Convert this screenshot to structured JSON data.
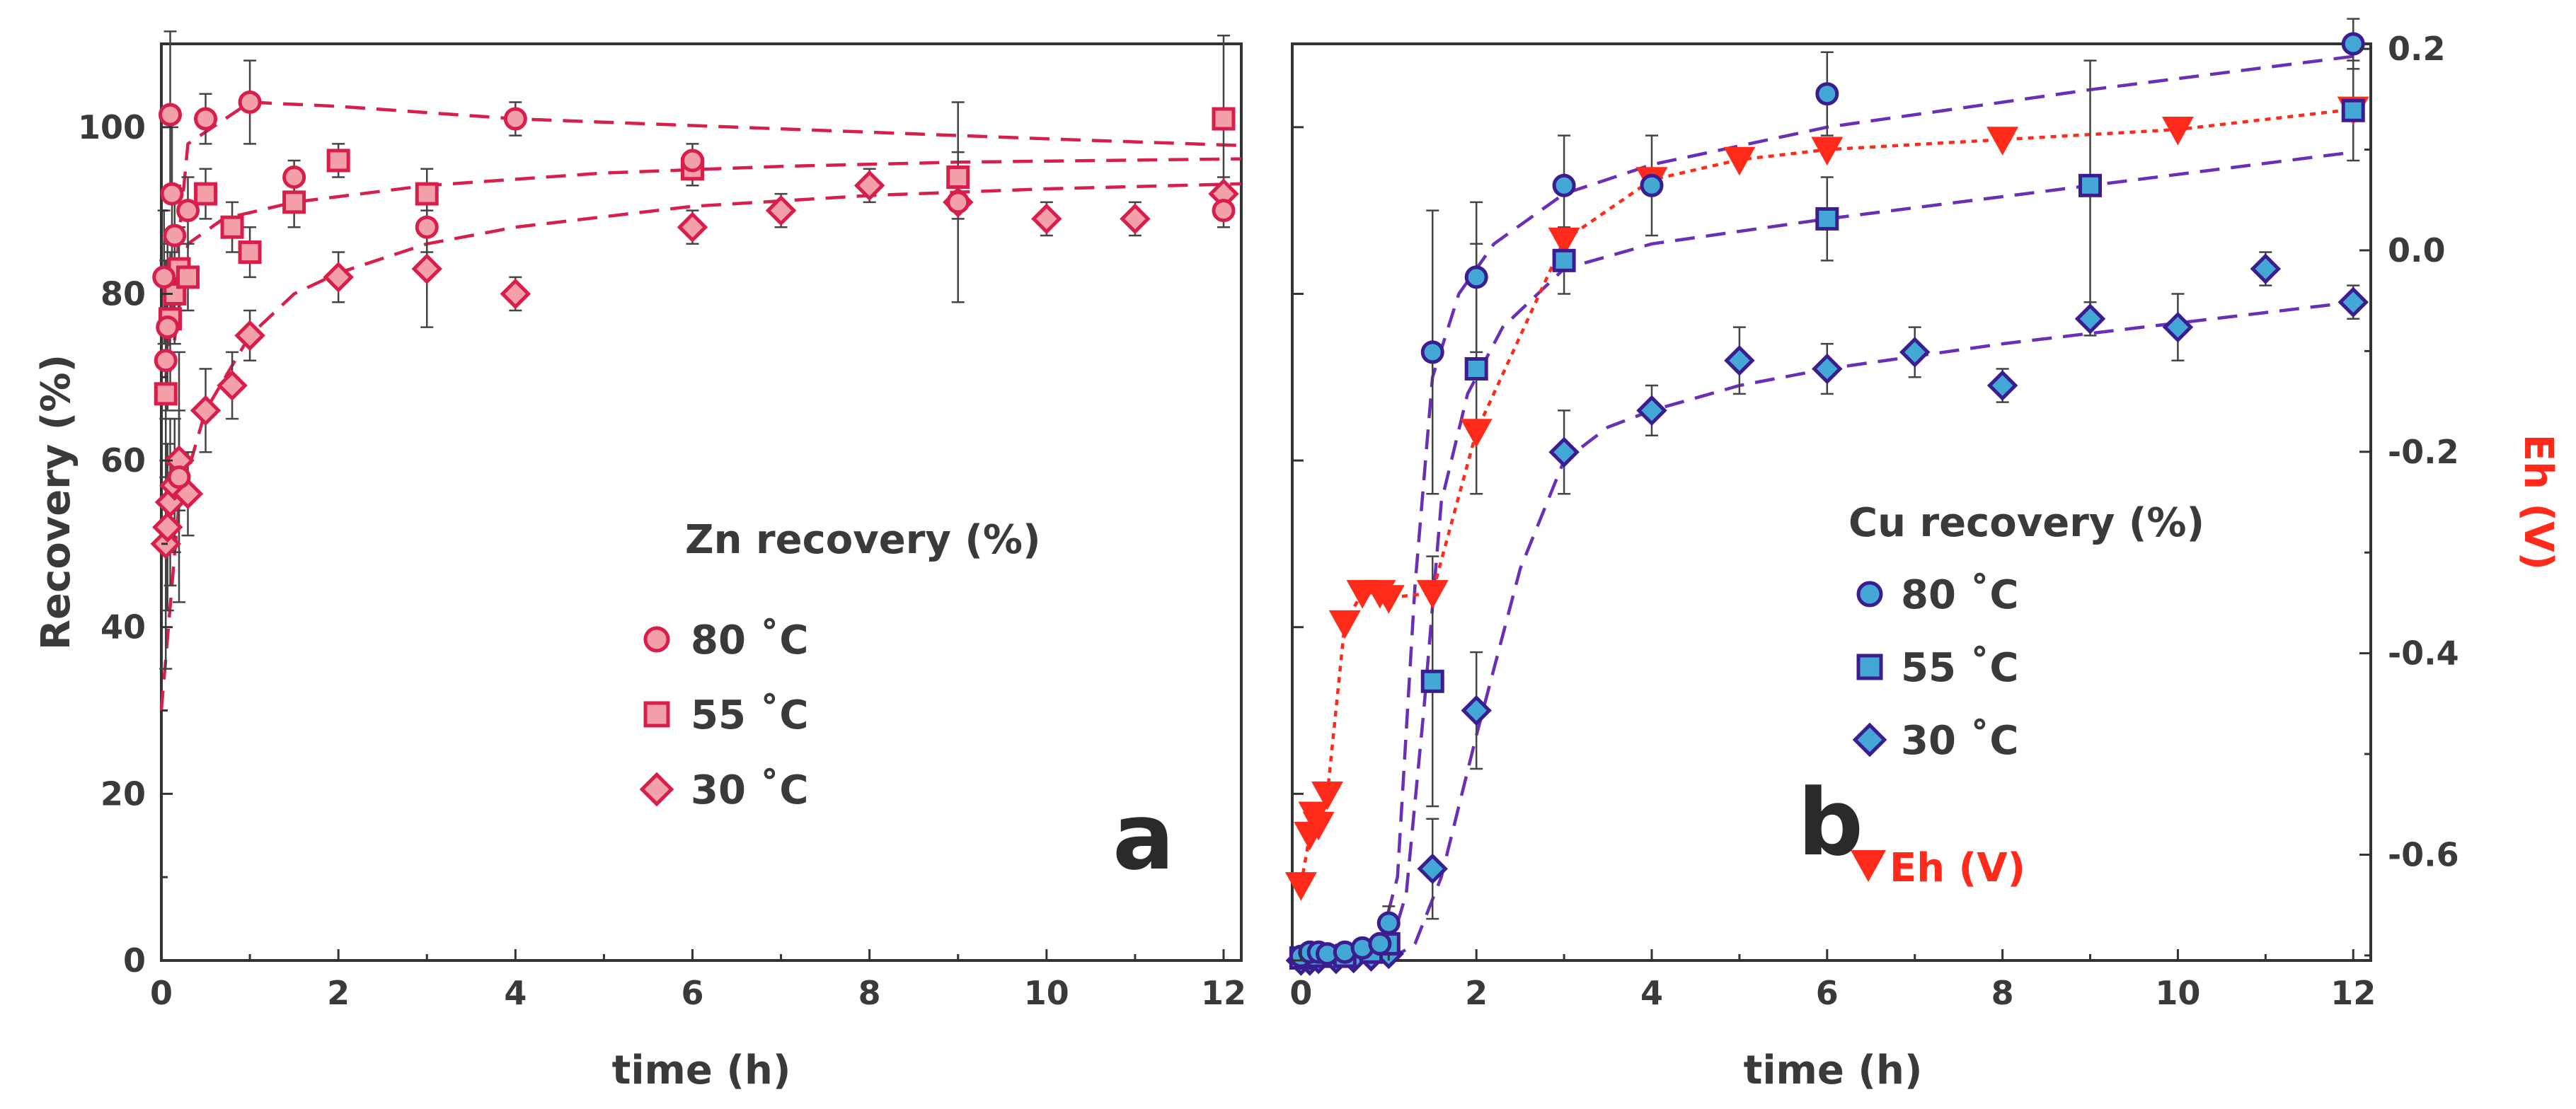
{
  "colors": {
    "zn": "#d81e4a",
    "zn_fill": "#f4a0ab",
    "cu_edge": "#3b1d8f",
    "cu_fill": "#44a8d6",
    "cu_line": "#6a2eb8",
    "eh": "#ff2a1a",
    "axis": "#333333"
  },
  "chart_data": [
    {
      "type": "scatter",
      "panel": "a",
      "xlabel": "time (h)",
      "ylabel": "Recovery (%)",
      "xlim": [
        0,
        12.2
      ],
      "ylim": [
        0,
        110
      ],
      "xticks": [
        "0",
        "2",
        "4",
        "6",
        "8",
        "10",
        "12"
      ],
      "xtick_values": [
        0,
        2,
        4,
        6,
        8,
        10,
        12
      ],
      "yticks": [
        "0",
        "20",
        "40",
        "60",
        "80",
        "100"
      ],
      "ytick_values": [
        0,
        20,
        40,
        60,
        80,
        100
      ],
      "legend_title": "Zn recovery (%)",
      "series": [
        {
          "name": "80 ˚C",
          "marker": "circle",
          "x": [
            0.03,
            0.05,
            0.07,
            0.1,
            0.12,
            0.15,
            0.2,
            0.3,
            0.5,
            1,
            1.5,
            3,
            4,
            6,
            9,
            12
          ],
          "y": [
            82,
            72,
            76,
            101.5,
            92,
            87,
            58,
            90,
            101,
            103,
            94,
            88,
            101,
            96,
            91,
            90
          ],
          "err": [
            8,
            12,
            10,
            10,
            8,
            6,
            15,
            4,
            3,
            5,
            2,
            3,
            2,
            2,
            12,
            2
          ],
          "fit_x": [
            0.05,
            0.3,
            1,
            2,
            4,
            6,
            8,
            10,
            12.2
          ],
          "fit_y": [
            70,
            98,
            103,
            102.5,
            101,
            100.2,
            99.4,
            98.6,
            97.8
          ]
        },
        {
          "name": "55 ˚C",
          "marker": "square",
          "x": [
            0.05,
            0.1,
            0.15,
            0.2,
            0.3,
            0.5,
            0.8,
            1,
            1.5,
            2,
            3,
            6,
            9,
            12
          ],
          "y": [
            68,
            77,
            80,
            83,
            82,
            92,
            88,
            85,
            91,
            96,
            92,
            95,
            94,
            101
          ],
          "err": [
            10,
            8,
            6,
            5,
            4,
            3,
            3,
            3,
            3,
            2,
            3,
            2,
            3,
            10
          ],
          "fit_x": [
            0.05,
            0.3,
            0.7,
            1.5,
            3,
            5,
            7,
            9,
            12.2
          ],
          "fit_y": [
            67,
            86,
            89,
            91,
            93,
            94.5,
            95.3,
            95.8,
            96.2
          ]
        },
        {
          "name": "30 ˚C",
          "marker": "diamond",
          "x": [
            0.05,
            0.07,
            0.1,
            0.15,
            0.2,
            0.3,
            0.5,
            0.8,
            1,
            2,
            3,
            4,
            6,
            7,
            8,
            9,
            10,
            11,
            12
          ],
          "y": [
            50,
            52,
            55,
            57,
            60,
            56,
            66,
            69,
            75,
            82,
            83,
            80,
            88,
            90,
            93,
            91,
            89,
            89,
            92
          ],
          "err": [
            15,
            10,
            10,
            8,
            6,
            5,
            5,
            4,
            3,
            3,
            7,
            2,
            2,
            2,
            2,
            2,
            2,
            2,
            2
          ],
          "fit_x": [
            0.0,
            0.2,
            0.5,
            1,
            1.5,
            2,
            3,
            4,
            6,
            8,
            10,
            12.2
          ],
          "fit_y": [
            30,
            55,
            66,
            75,
            80,
            82.5,
            86,
            88,
            90.5,
            91.8,
            92.6,
            93.2
          ]
        }
      ],
      "panel_label": "a"
    },
    {
      "type": "scatter",
      "panel": "b",
      "xlabel": "time (h)",
      "xlim": [
        -0.1,
        12.2
      ],
      "ylim": [
        0,
        110
      ],
      "xticks": [
        "0",
        "2",
        "4",
        "6",
        "8",
        "10",
        "12"
      ],
      "xtick_values": [
        0,
        2,
        4,
        6,
        8,
        10,
        12
      ],
      "y2label": "Eh (V)",
      "y2lim": [
        -0.705,
        0.205
      ],
      "y2ticks": [
        "0.2",
        "0.0",
        "-0.2",
        "-0.4",
        "-0.6"
      ],
      "y2tick_values": [
        0.2,
        0.0,
        -0.2,
        -0.4,
        -0.6
      ],
      "legend_title": "Cu recovery (%)",
      "series": [
        {
          "name": "80 ˚C",
          "marker": "circle",
          "x": [
            0,
            0.1,
            0.2,
            0.3,
            0.5,
            0.7,
            0.9,
            1,
            1.5,
            2,
            3,
            4,
            6,
            12
          ],
          "y": [
            0.5,
            1,
            1,
            0.8,
            1,
            1.5,
            2,
            4.5,
            73,
            82,
            93,
            93,
            104,
            110
          ],
          "err": [
            0.5,
            0.5,
            0.5,
            0.5,
            0.5,
            0.5,
            0.5,
            2,
            17,
            9,
            6,
            6,
            5,
            3
          ],
          "fit_x": [
            0.9,
            1.1,
            1.3,
            1.5,
            1.8,
            2.2,
            3,
            4,
            6,
            9,
            12
          ],
          "fit_y": [
            2,
            10,
            45,
            70,
            80,
            86,
            92,
            95.5,
            100,
            104.5,
            108.5
          ]
        },
        {
          "name": "55 ˚C",
          "marker": "square",
          "x": [
            0,
            0.2,
            0.5,
            0.8,
            1,
            1.5,
            2,
            3,
            6,
            9,
            12
          ],
          "y": [
            0.3,
            0.5,
            0.5,
            1,
            2,
            33.5,
            71,
            84,
            89,
            93,
            102
          ],
          "err": [
            0.3,
            0.3,
            0.3,
            0.5,
            1,
            15,
            15,
            4,
            5,
            15,
            6
          ],
          "fit_x": [
            1.0,
            1.2,
            1.4,
            1.6,
            1.9,
            2.3,
            3,
            4,
            6,
            9,
            12
          ],
          "fit_y": [
            1,
            8,
            30,
            55,
            68,
            76,
            83,
            86,
            89,
            93,
            97
          ]
        },
        {
          "name": "30 ˚C",
          "marker": "diamond",
          "x": [
            0,
            0.1,
            0.2,
            0.4,
            0.6,
            0.8,
            1,
            1.5,
            2,
            3,
            4,
            5,
            6,
            7,
            8,
            9,
            10,
            11,
            12
          ],
          "y": [
            0,
            0,
            0.2,
            0.2,
            0.3,
            0.5,
            0.8,
            11,
            30,
            61,
            66,
            72,
            71,
            73,
            69,
            77,
            76,
            83,
            79
          ],
          "err": [
            0.3,
            0.3,
            0.3,
            0.3,
            0.3,
            0.5,
            0.5,
            6,
            7,
            5,
            3,
            4,
            3,
            3,
            2,
            2,
            4,
            2,
            2
          ],
          "fit_x": [
            1.0,
            1.3,
            1.6,
            2,
            2.5,
            3,
            3.5,
            4,
            5,
            6,
            8,
            10,
            12
          ],
          "fit_y": [
            0,
            2,
            10,
            27,
            47,
            60,
            64,
            66,
            69,
            71,
            74,
            76.5,
            79
          ]
        }
      ],
      "eh_series": {
        "name": "Eh (V)",
        "marker": "triangle-down",
        "x": [
          0,
          0.1,
          0.15,
          0.2,
          0.3,
          0.5,
          0.7,
          0.9,
          1,
          1.5,
          2,
          3,
          4,
          5,
          6,
          8,
          10,
          12
        ],
        "y": [
          -0.63,
          -0.58,
          -0.56,
          -0.57,
          -0.54,
          -0.37,
          -0.34,
          -0.34,
          -0.345,
          -0.34,
          -0.18,
          0.01,
          0.07,
          0.09,
          0.1,
          0.11,
          0.12,
          0.14
        ]
      },
      "panel_label": "b"
    }
  ]
}
